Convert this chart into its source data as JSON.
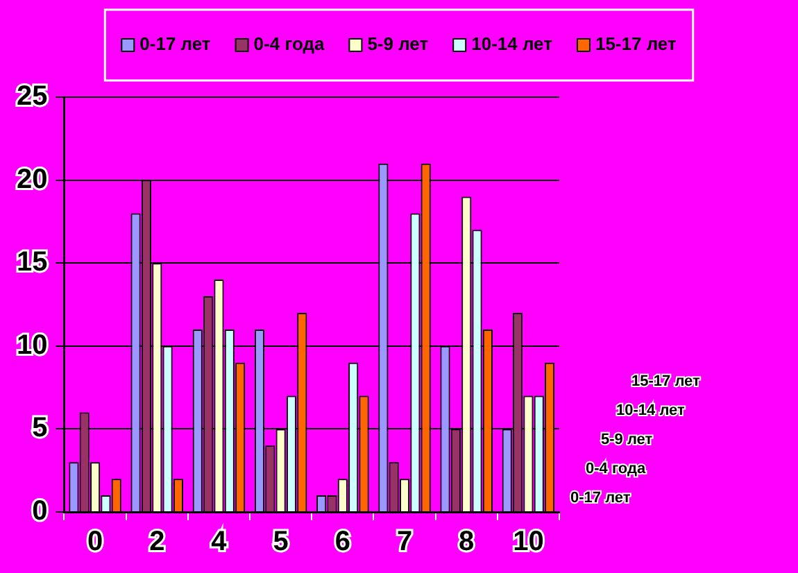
{
  "chart_data": {
    "type": "bar",
    "categories": [
      "0",
      "2",
      "4",
      "5",
      "6",
      "7",
      "8",
      "10"
    ],
    "series": [
      {
        "name": "0-17 лет",
        "color": "#9999ff",
        "values": [
          3,
          18,
          11,
          11,
          1,
          21,
          10,
          5
        ]
      },
      {
        "name": "0-4 года",
        "color": "#993366",
        "values": [
          6,
          20,
          13,
          4,
          1,
          3,
          5,
          12
        ]
      },
      {
        "name": "5-9 лет",
        "color": "#ffffcc",
        "values": [
          3,
          15,
          14,
          5,
          2,
          2,
          19,
          7
        ]
      },
      {
        "name": "10-14 лет",
        "color": "#ccffff",
        "values": [
          1,
          10,
          11,
          7,
          9,
          18,
          17,
          7
        ]
      },
      {
        "name": "15-17 лет",
        "color": "#ff6600",
        "values": [
          2,
          2,
          9,
          12,
          7,
          21,
          11,
          9
        ]
      }
    ],
    "ylim": [
      0,
      25
    ],
    "yticks": [
      0,
      5,
      10,
      15,
      20,
      25
    ],
    "grid": "y",
    "legend": "top"
  }
}
